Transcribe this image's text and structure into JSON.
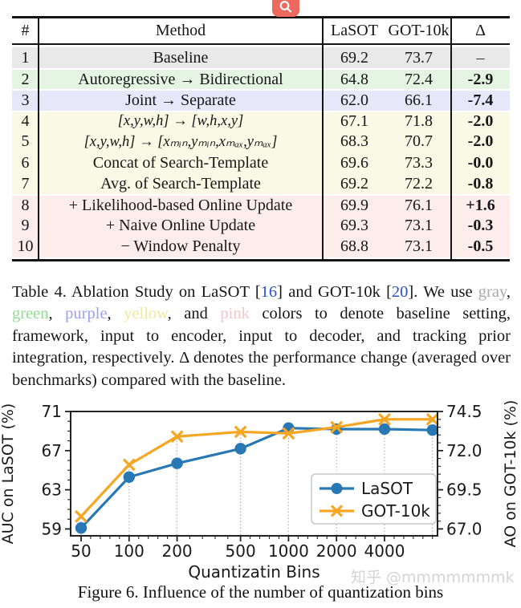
{
  "table": {
    "columns": [
      "#",
      "Method",
      "LaSOT",
      "GOT-10k",
      "Δ"
    ],
    "rows": [
      {
        "num": "1",
        "method": "Baseline",
        "lasot": "69.2",
        "got10k": "73.7",
        "delta": "–",
        "group": "gray",
        "math": false
      },
      {
        "num": "2",
        "method": "Autoregressive → Bidirectional",
        "lasot": "64.8",
        "got10k": "72.4",
        "delta": "-2.9",
        "group": "green",
        "math": false
      },
      {
        "num": "3",
        "method": "Joint → Separate",
        "lasot": "62.0",
        "got10k": "66.1",
        "delta": "-7.4",
        "group": "purple",
        "math": false
      },
      {
        "num": "4",
        "method": "[x,y,w,h] → [w,h,x,y]",
        "lasot": "67.1",
        "got10k": "71.8",
        "delta": "-2.0",
        "group": "yellow",
        "math": true
      },
      {
        "num": "5",
        "method": "[x,y,w,h] → [xₘᵢₙ,yₘᵢₙ,xₘₐₓ,yₘₐₓ]",
        "lasot": "68.3",
        "got10k": "70.7",
        "delta": "-2.0",
        "group": "yellow",
        "math": true
      },
      {
        "num": "6",
        "method": "Concat of Search-Template",
        "lasot": "69.6",
        "got10k": "73.3",
        "delta": "-0.0",
        "group": "yellow",
        "math": false
      },
      {
        "num": "7",
        "method": "Avg. of Search-Template",
        "lasot": "69.2",
        "got10k": "72.2",
        "delta": "-0.8",
        "group": "yellow",
        "math": false
      },
      {
        "num": "8",
        "method": "+ Likelihood-based Online Update",
        "lasot": "69.9",
        "got10k": "76.1",
        "delta": "+1.6",
        "group": "pink",
        "math": false
      },
      {
        "num": "9",
        "method": "+ Naive Online Update",
        "lasot": "69.3",
        "got10k": "73.1",
        "delta": "-0.3",
        "group": "pink",
        "math": false
      },
      {
        "num": "10",
        "method": "− Window Penalty",
        "lasot": "68.8",
        "got10k": "73.1",
        "delta": "-0.5",
        "group": "pink",
        "math": false
      }
    ],
    "group_colors": {
      "gray": "#e9e9e9",
      "green": "#e4f5e2",
      "purple": "#e7e7fa",
      "yellow": "#f9f9e6",
      "pink": "#fdecec"
    }
  },
  "table_caption": {
    "segments": [
      {
        "t": "Table 4.  Ablation Study on LaSOT ["
      },
      {
        "t": "16",
        "c": "cite"
      },
      {
        "t": "] and GOT-10k ["
      },
      {
        "t": "20",
        "c": "cite"
      },
      {
        "t": "].  We use "
      },
      {
        "t": "gray",
        "c": "gray"
      },
      {
        "t": ", "
      },
      {
        "t": "green",
        "c": "green"
      },
      {
        "t": ", "
      },
      {
        "t": "purple",
        "c": "purple"
      },
      {
        "t": ", "
      },
      {
        "t": "yellow",
        "c": "yellow"
      },
      {
        "t": ", and "
      },
      {
        "t": "pink",
        "c": "pink"
      },
      {
        "t": " colors to denote baseline setting, framework, input to encoder, input to decoder, and tracking prior integration, respectively.  Δ denotes the performance change (averaged over benchmarks) compared with the baseline."
      }
    ]
  },
  "word_colors": {
    "cite": "#2b50c8",
    "gray": "#a9a9a9",
    "green": "#8fde8f",
    "purple": "#9f9ff2",
    "yellow": "#efe89e",
    "pink": "#f3c6cb"
  },
  "icons": {
    "magnifier": "⌕"
  },
  "chart_data": {
    "type": "line",
    "xlabel": "Quantizatin Bins",
    "x_scale": "log",
    "x": [
      50,
      100,
      200,
      500,
      1000,
      2000,
      4000,
      8000
    ],
    "x_tick_values": [
      50,
      100,
      200,
      500,
      1000,
      2000,
      4000
    ],
    "x_tick_labels": [
      "50",
      "100",
      "200",
      "500",
      "1000",
      "2000",
      "4000"
    ],
    "xlim": [
      43,
      8600
    ],
    "series": [
      {
        "name": "LaSOT",
        "axis": "left",
        "color": "#2878b5",
        "marker": "circle",
        "values": [
          59.1,
          64.3,
          65.7,
          67.2,
          69.3,
          69.2,
          69.2,
          69.1
        ]
      },
      {
        "name": "GOT-10k",
        "axis": "right",
        "color": "#f5a623",
        "marker": "x",
        "values": [
          67.8,
          71.1,
          72.9,
          73.2,
          73.1,
          73.5,
          74.0,
          74.0
        ]
      }
    ],
    "left_axis": {
      "label": "AUC on LaSOT (%)",
      "tick_values": [
        59,
        63,
        67,
        71
      ],
      "tick_labels": [
        "59",
        "63",
        "67",
        "71"
      ],
      "lim": [
        58.3,
        71.0
      ]
    },
    "right_axis": {
      "label": "AO on GOT-10k (%)",
      "tick_values": [
        67.0,
        69.5,
        72.0,
        74.5
      ],
      "tick_labels": [
        "67.0",
        "69.5",
        "72.0",
        "74.5"
      ],
      "lim": [
        66.56,
        74.5
      ]
    },
    "legend_position": "lower right",
    "grid": "vertical dotted stems at data x positions"
  },
  "figure": {
    "caption": "Figure 6. Influence of the number of quantization bins"
  },
  "watermark": {
    "text": "知乎 @mmmmmmmk",
    "color": "#d4d4d4"
  }
}
